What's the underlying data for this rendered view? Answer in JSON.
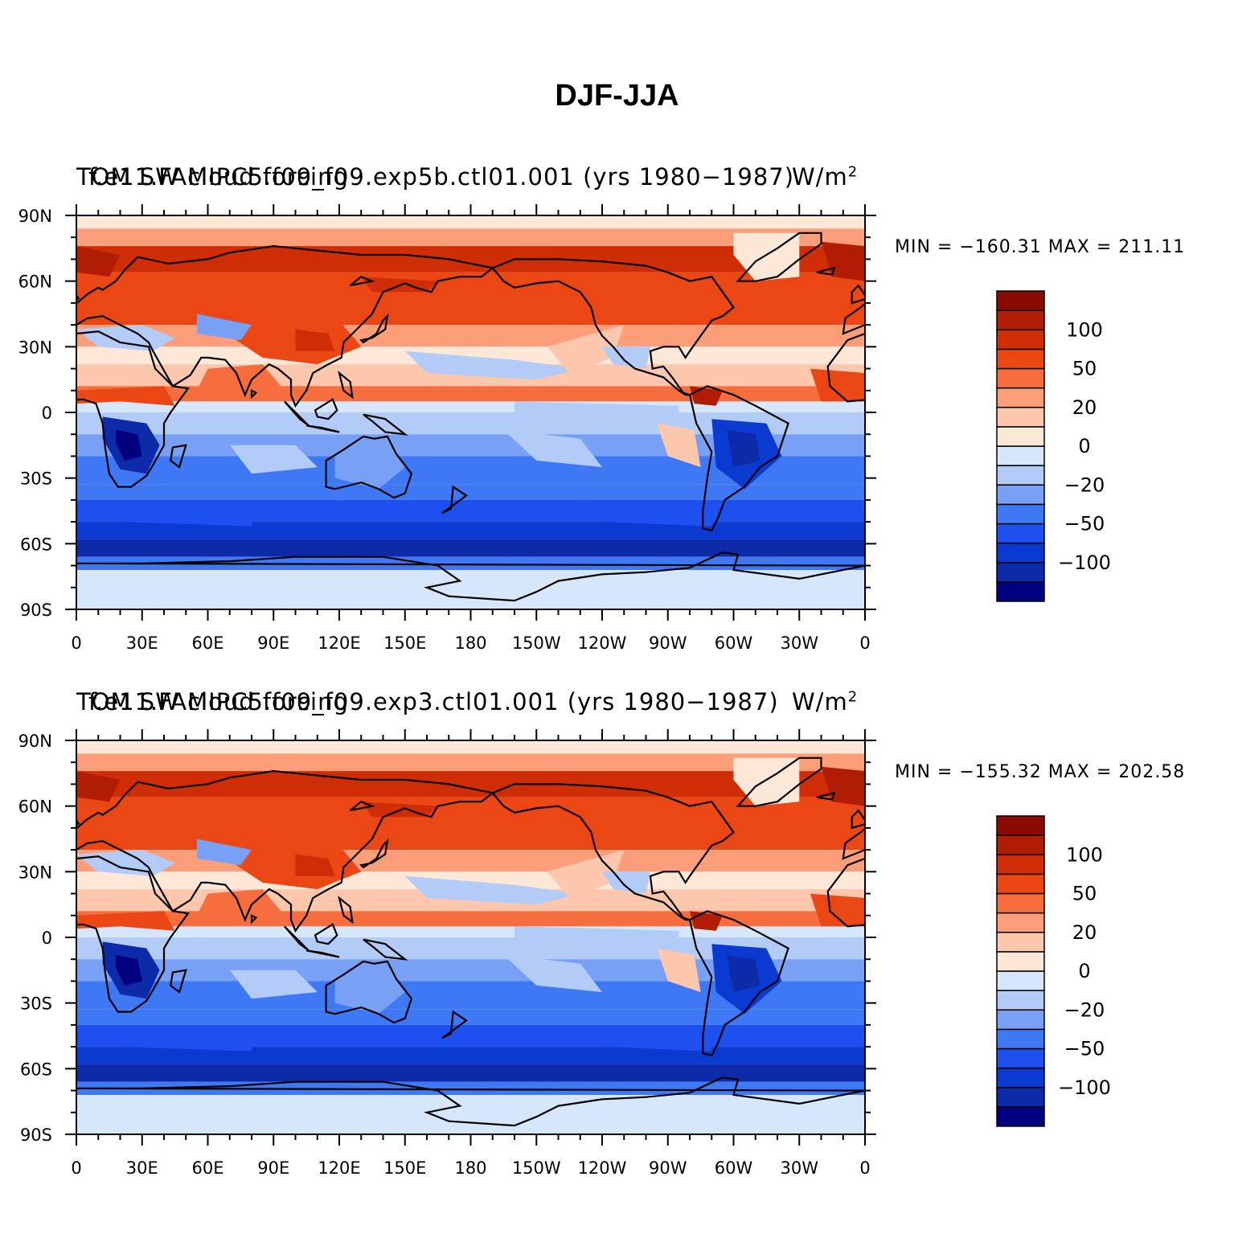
{
  "title": "DJF-JJA",
  "colorbar": {
    "colors": [
      "#00007f",
      "#0d2aa8",
      "#0a3ad0",
      "#1e50f0",
      "#3f78f5",
      "#78a0f5",
      "#b2cbf7",
      "#d6e7fb",
      "#fde7d7",
      "#fcc7ad",
      "#fb9e79",
      "#f66e3e",
      "#ea4715",
      "#cf2d05",
      "#b01d04",
      "#8a0b02"
    ],
    "tick_labels": [
      "−100",
      "−50",
      "−20",
      "0",
      "20",
      "50",
      "100"
    ]
  },
  "axes": {
    "lon_labels": [
      "0",
      "30E",
      "60E",
      "90E",
      "120E",
      "150E",
      "180",
      "150W",
      "120W",
      "90W",
      "60W",
      "30W",
      "0"
    ],
    "lat_labels": [
      "90N",
      "60N",
      "30N",
      "0",
      "30S",
      "60S",
      "90S"
    ]
  },
  "panels": [
    {
      "variable": "TOM SW cloud forcing",
      "case": "f.e11.FAMIPC5.f09_f09.exp5b.ctl01.001 (yrs 1980−1987)",
      "units": "W/m",
      "units_exp": "2",
      "min_label": "MIN = −160.31 MAX = 211.11"
    },
    {
      "variable": "TOM SW cloud forcing",
      "case": "f.e11.FAMIPC5.f09_f09.exp3.ctl01.001 (yrs 1980−1987)",
      "units": "W/m",
      "units_exp": "2",
      "min_label": "MIN = −155.32 MAX = 202.58"
    }
  ]
}
